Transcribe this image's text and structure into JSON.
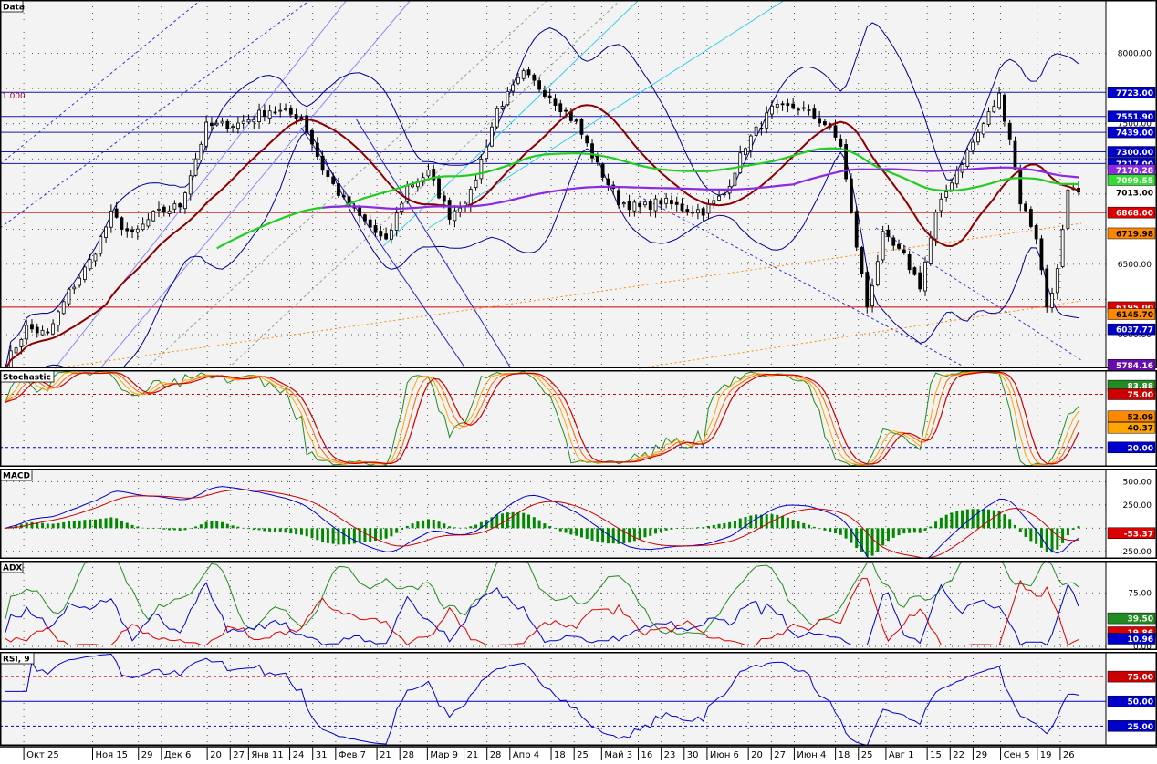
{
  "chart_data": [
    {
      "type": "candlestick",
      "title": "Data",
      "fib_label": "1.000",
      "ylim": [
        5760,
        8380
      ],
      "yticks": [
        6000,
        6500,
        7000,
        7500,
        8000
      ],
      "horizontal_lines": [
        {
          "value": 7723.0,
          "color": "#1a1aa0"
        },
        {
          "value": 7551.9,
          "color": "#1a1aa0"
        },
        {
          "value": 7439.0,
          "color": "#1a1aa0"
        },
        {
          "value": 7300.0,
          "color": "#1a1aa0"
        },
        {
          "value": 7217.0,
          "color": "#1a1aa0"
        },
        {
          "value": 6868.0,
          "color": "#cc0000"
        },
        {
          "value": 6195.0,
          "color": "#cc0000"
        }
      ],
      "price_badges": [
        {
          "label": "7723.00",
          "value": 7723.0,
          "bg": "#0000cc",
          "fg": "#ffffff"
        },
        {
          "label": "7551.90",
          "value": 7551.9,
          "bg": "#0000cc",
          "fg": "#ffffff"
        },
        {
          "label": "7439.00",
          "value": 7439.0,
          "bg": "#0000cc",
          "fg": "#ffffff"
        },
        {
          "label": "7300.00",
          "value": 7300.0,
          "bg": "#0000cc",
          "fg": "#ffffff"
        },
        {
          "label": "7217.00",
          "value": 7217.0,
          "bg": "#0000cc",
          "fg": "#ffffff"
        },
        {
          "label": "7170.28",
          "value": 7170.28,
          "bg": "#8a2be2",
          "fg": "#ffffff"
        },
        {
          "label": "7099.55",
          "value": 7099.55,
          "bg": "#33dd33",
          "fg": "#ffffff"
        },
        {
          "label": "7013.00",
          "value": 7013.0,
          "bg": "#ffffff",
          "fg": "#000000"
        },
        {
          "label": "6868.00",
          "value": 6868.0,
          "bg": "#dd0000",
          "fg": "#ffffff"
        },
        {
          "label": "6719.98",
          "value": 6719.98,
          "bg": "#ff8800",
          "fg": "#000000"
        },
        {
          "label": "6195.00",
          "value": 6195.0,
          "bg": "#dd0000",
          "fg": "#ffffff"
        },
        {
          "label": "6145.70",
          "value": 6145.7,
          "bg": "#ff8800",
          "fg": "#000000"
        },
        {
          "label": "6037.77",
          "value": 6037.77,
          "bg": "#0000cc",
          "fg": "#ffffff"
        },
        {
          "label": "5784.16",
          "value": 5784.16,
          "bg": "#6a0dad",
          "fg": "#ffffff"
        }
      ],
      "close_anchors": [
        {
          "bar": 0,
          "v": 5790
        },
        {
          "bar": 4,
          "v": 6050
        },
        {
          "bar": 8,
          "v": 6000
        },
        {
          "bar": 12,
          "v": 6300
        },
        {
          "bar": 16,
          "v": 6520
        },
        {
          "bar": 20,
          "v": 6850
        },
        {
          "bar": 24,
          "v": 6700
        },
        {
          "bar": 28,
          "v": 6850
        },
        {
          "bar": 33,
          "v": 6920
        },
        {
          "bar": 38,
          "v": 7480
        },
        {
          "bar": 44,
          "v": 7500
        },
        {
          "bar": 50,
          "v": 7600
        },
        {
          "bar": 56,
          "v": 7550
        },
        {
          "bar": 60,
          "v": 7180
        },
        {
          "bar": 64,
          "v": 6950
        },
        {
          "bar": 68,
          "v": 6800
        },
        {
          "bar": 72,
          "v": 6650
        },
        {
          "bar": 76,
          "v": 7050
        },
        {
          "bar": 80,
          "v": 7150
        },
        {
          "bar": 84,
          "v": 6850
        },
        {
          "bar": 88,
          "v": 7000
        },
        {
          "bar": 93,
          "v": 7600
        },
        {
          "bar": 98,
          "v": 7850
        },
        {
          "bar": 103,
          "v": 7700
        },
        {
          "bar": 108,
          "v": 7500
        },
        {
          "bar": 112,
          "v": 7200
        },
        {
          "bar": 116,
          "v": 6950
        },
        {
          "bar": 120,
          "v": 6900
        },
        {
          "bar": 124,
          "v": 6950
        },
        {
          "bar": 128,
          "v": 6900
        },
        {
          "bar": 132,
          "v": 6880
        },
        {
          "bar": 136,
          "v": 7000
        },
        {
          "bar": 140,
          "v": 7350
        },
        {
          "bar": 145,
          "v": 7600
        },
        {
          "bar": 150,
          "v": 7620
        },
        {
          "bar": 155,
          "v": 7500
        },
        {
          "bar": 158,
          "v": 7350
        },
        {
          "bar": 160,
          "v": 6850
        },
        {
          "bar": 163,
          "v": 6200
        },
        {
          "bar": 166,
          "v": 6700
        },
        {
          "bar": 170,
          "v": 6550
        },
        {
          "bar": 173,
          "v": 6350
        },
        {
          "bar": 176,
          "v": 6850
        },
        {
          "bar": 179,
          "v": 7100
        },
        {
          "bar": 182,
          "v": 7300
        },
        {
          "bar": 185,
          "v": 7500
        },
        {
          "bar": 188,
          "v": 7700
        },
        {
          "bar": 190,
          "v": 7400
        },
        {
          "bar": 192,
          "v": 6950
        },
        {
          "bar": 195,
          "v": 6700
        },
        {
          "bar": 197,
          "v": 6200
        },
        {
          "bar": 199,
          "v": 6450
        },
        {
          "bar": 201,
          "v": 7000
        },
        {
          "bar": 203,
          "v": 7013
        }
      ],
      "bar_count": 204,
      "overlays": [
        {
          "name": "",
          "kind": "sma",
          "period": 20,
          "color": "#8b0000"
        },
        {
          "name": "",
          "kind": "sma",
          "period": 65,
          "color": "#22cc22"
        },
        {
          "name": "",
          "kind": "sma",
          "period": 150,
          "color": "#8a2be2"
        },
        {
          "name": "",
          "kind": "bollinger",
          "period": 20,
          "color": "#00008b"
        }
      ]
    },
    {
      "type": "line",
      "title": "Stochastic",
      "ylim": [
        0,
        100
      ],
      "levels": [
        {
          "value": 75,
          "color": "#cc0000"
        },
        {
          "value": 20,
          "color": "#0000cc"
        }
      ],
      "badges": [
        {
          "label": "83.88",
          "value": 83.88,
          "bg": "#228b22",
          "fg": "#ffffff"
        },
        {
          "label": "75.00",
          "value": 75.0,
          "bg": "#cc0000",
          "fg": "#ffffff"
        },
        {
          "label": "52.09",
          "value": 52.09,
          "bg": "#ff8800",
          "fg": "#000000"
        },
        {
          "label": "40.37",
          "value": 40.37,
          "bg": "#ffa500",
          "fg": "#000000"
        },
        {
          "label": "20.00",
          "value": 20.0,
          "bg": "#0000cc",
          "fg": "#ffffff"
        }
      ]
    },
    {
      "type": "bar+line",
      "title": "MACD",
      "ylim": [
        -330,
        640
      ],
      "yticks": [
        500,
        250,
        -250
      ],
      "badges": [
        {
          "label": "-53.37",
          "value": -53.37,
          "bg": "#dd0000",
          "fg": "#ffffff"
        }
      ]
    },
    {
      "type": "line",
      "title": "ADX",
      "ylim": [
        -5,
        120
      ],
      "yticks": [
        75,
        0
      ],
      "badges": [
        {
          "label": "39.50",
          "value": 39.5,
          "bg": "#228b22",
          "fg": "#ffffff"
        },
        {
          "label": "19.86",
          "value": 19.86,
          "bg": "#dd0000",
          "fg": "#ffffff"
        },
        {
          "label": "10.96",
          "value": 10.96,
          "bg": "#0000cc",
          "fg": "#ffffff"
        }
      ],
      "zero_label": "0.00"
    },
    {
      "type": "line",
      "title": "RSI, 9",
      "ylim": [
        5,
        100
      ],
      "levels": [
        {
          "value": 75,
          "color": "#cc0000"
        },
        {
          "value": 50,
          "color": "#0000cc"
        },
        {
          "value": 25,
          "color": "#0000cc"
        }
      ],
      "badges": [
        {
          "label": "75.00",
          "value": 75.0,
          "bg": "#cc0000",
          "fg": "#ffffff"
        },
        {
          "label": "50.00",
          "value": 50.0,
          "bg": "#0000cc",
          "fg": "#ffffff"
        },
        {
          "label": "25.00",
          "value": 25.0,
          "bg": "#0000cc",
          "fg": "#ffffff"
        }
      ]
    }
  ],
  "x_axis": {
    "labels": [
      {
        "text": "Окт 25",
        "bar": 4
      },
      {
        "text": "Ноя 15",
        "bar": 19
      },
      {
        "text": "29",
        "bar": 29
      },
      {
        "text": "Дек 6",
        "bar": 34
      },
      {
        "text": "20",
        "bar": 44
      },
      {
        "text": "27",
        "bar": 49
      },
      {
        "text": "Янв 11",
        "bar": 53
      },
      {
        "text": "24",
        "bar": 62
      },
      {
        "text": "31",
        "bar": 67
      },
      {
        "text": "Фев 7",
        "bar": 72
      },
      {
        "text": "21",
        "bar": 81
      },
      {
        "text": "28",
        "bar": 86
      },
      {
        "text": "Мар 9",
        "bar": 92
      },
      {
        "text": "21",
        "bar": 100
      },
      {
        "text": "28",
        "bar": 105
      },
      {
        "text": "Апр 4",
        "bar": 110
      },
      {
        "text": "18",
        "bar": 119
      },
      {
        "text": "25",
        "bar": 124
      },
      {
        "text": "Май 3",
        "bar": 130
      },
      {
        "text": "16",
        "bar": 138
      },
      {
        "text": "23",
        "bar": 143
      },
      {
        "text": "30",
        "bar": 148
      },
      {
        "text": "Июн 6",
        "bar": 153
      },
      {
        "text": "20",
        "bar": 162
      },
      {
        "text": "27",
        "bar": 167
      },
      {
        "text": "Июн 4",
        "bar": 172
      },
      {
        "text": "18",
        "bar": 181
      },
      {
        "text": "25",
        "bar": 186
      },
      {
        "text": "Авг 1",
        "bar": 192
      },
      {
        "text": "15",
        "bar": 201
      },
      {
        "text": "22",
        "bar": 206
      },
      {
        "text": "29",
        "bar": 211
      },
      {
        "text": "Сен 5",
        "bar": 217
      },
      {
        "text": "19",
        "bar": 225
      },
      {
        "text": "26",
        "bar": 230
      }
    ]
  }
}
